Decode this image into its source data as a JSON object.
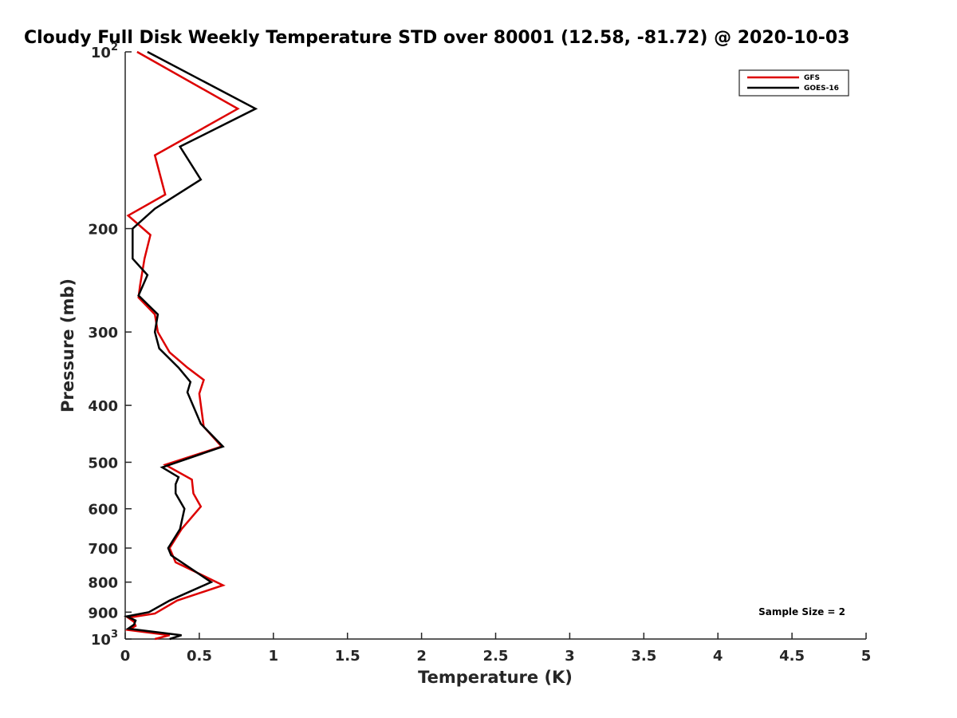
{
  "chart_data": {
    "type": "line",
    "title": "Cloudy Full Disk Weekly Temperature STD over 80001 (12.58, -81.72) @ 2020-10-03",
    "xlabel": "Temperature (K)",
    "ylabel": "Pressure (mb)",
    "xlim": [
      0,
      5
    ],
    "ylim": [
      1000,
      100
    ],
    "yscale": "log",
    "y_reversed": true,
    "x_ticks": [
      "0",
      "0.5",
      "1",
      "1.5",
      "2",
      "2.5",
      "3",
      "3.5",
      "4",
      "4.5",
      "5"
    ],
    "y_ticks": [
      {
        "value": 100,
        "base": "10",
        "exp": "2"
      },
      {
        "value": 200,
        "label": "200"
      },
      {
        "value": 300,
        "label": "300"
      },
      {
        "value": 400,
        "label": "400"
      },
      {
        "value": 500,
        "label": "500"
      },
      {
        "value": 600,
        "label": "600"
      },
      {
        "value": 700,
        "label": "700"
      },
      {
        "value": 800,
        "label": "800"
      },
      {
        "value": 900,
        "label": "900"
      },
      {
        "value": 1000,
        "base": "10",
        "exp": "3"
      }
    ],
    "grid": false,
    "legend_position": "top-right",
    "series": [
      {
        "name": "GFS",
        "color": "#dd0000",
        "points": [
          [
            0.08,
            100
          ],
          [
            0.76,
            125
          ],
          [
            0.2,
            150
          ],
          [
            0.27,
            175
          ],
          [
            0.02,
            190
          ],
          [
            0.17,
            205
          ],
          [
            0.13,
            225
          ],
          [
            0.1,
            250
          ],
          [
            0.09,
            262
          ],
          [
            0.2,
            280
          ],
          [
            0.22,
            300
          ],
          [
            0.3,
            325
          ],
          [
            0.42,
            345
          ],
          [
            0.53,
            362
          ],
          [
            0.5,
            382
          ],
          [
            0.53,
            435
          ],
          [
            0.65,
            470
          ],
          [
            0.27,
            505
          ],
          [
            0.45,
            535
          ],
          [
            0.46,
            565
          ],
          [
            0.51,
            595
          ],
          [
            0.38,
            650
          ],
          [
            0.3,
            700
          ],
          [
            0.34,
            740
          ],
          [
            0.66,
            810
          ],
          [
            0.35,
            860
          ],
          [
            0.2,
            905
          ],
          [
            0.02,
            920
          ],
          [
            0.06,
            935
          ],
          [
            0.07,
            950
          ],
          [
            0.02,
            965
          ],
          [
            0.3,
            985
          ],
          [
            0.2,
            1000
          ]
        ]
      },
      {
        "name": "GOES-16",
        "color": "#000000",
        "points": [
          [
            0.15,
            100
          ],
          [
            0.88,
            125
          ],
          [
            0.37,
            145
          ],
          [
            0.51,
            165
          ],
          [
            0.2,
            185
          ],
          [
            0.05,
            200
          ],
          [
            0.05,
            225
          ],
          [
            0.15,
            240
          ],
          [
            0.09,
            260
          ],
          [
            0.22,
            280
          ],
          [
            0.2,
            300
          ],
          [
            0.23,
            320
          ],
          [
            0.36,
            345
          ],
          [
            0.44,
            365
          ],
          [
            0.42,
            380
          ],
          [
            0.51,
            430
          ],
          [
            0.66,
            470
          ],
          [
            0.25,
            510
          ],
          [
            0.36,
            530
          ],
          [
            0.34,
            545
          ],
          [
            0.34,
            565
          ],
          [
            0.4,
            600
          ],
          [
            0.37,
            650
          ],
          [
            0.29,
            700
          ],
          [
            0.31,
            720
          ],
          [
            0.58,
            800
          ],
          [
            0.3,
            860
          ],
          [
            0.16,
            900
          ],
          [
            0.01,
            915
          ],
          [
            0.07,
            930
          ],
          [
            0.06,
            945
          ],
          [
            0.02,
            960
          ],
          [
            0.38,
            985
          ],
          [
            0.3,
            1000
          ]
        ]
      }
    ],
    "annotations": [
      "Sample Size = 2"
    ]
  }
}
